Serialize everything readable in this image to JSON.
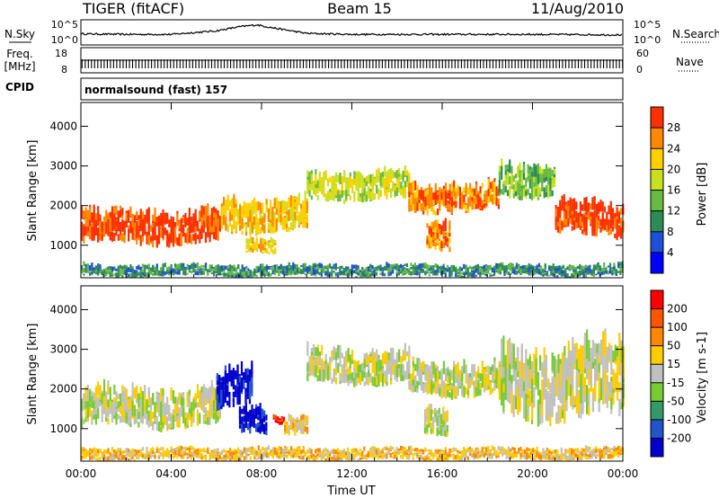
{
  "chart_data": [
    {
      "type": "header",
      "title": "TIGER (fitACF)",
      "subtitle": "Beam 15",
      "date": "11/Aug/2010"
    },
    {
      "type": "line",
      "name": "noise-panel",
      "left_label": "N.Sky",
      "right_label": "N.Search",
      "left_ticks": [
        "10^5",
        "10^0"
      ],
      "right_ticks": [
        "10^5",
        "10^0"
      ],
      "ylim": [
        0,
        5
      ],
      "series": [
        {
          "name": "N.Sky",
          "x": [
            0,
            2,
            4,
            6,
            7,
            7.8,
            8.5,
            10,
            12,
            16,
            20,
            24
          ],
          "values": [
            2.2,
            2.1,
            2.1,
            2.8,
            3.6,
            4.0,
            3.4,
            2.3,
            2.1,
            2.1,
            2.1,
            2.0
          ]
        }
      ]
    },
    {
      "type": "line",
      "name": "frequency-panel",
      "left_label": "Freq.",
      "left_unit": "[MHz]",
      "right_label": "Nave",
      "left_ticks": [
        "18",
        "8"
      ],
      "right_ticks": [
        "60",
        "0"
      ],
      "ylim": [
        8,
        18
      ]
    },
    {
      "type": "table",
      "name": "cpid-panel",
      "left_label": "CPID",
      "value": "normalsound (fast) 157"
    },
    {
      "type": "heatmap",
      "name": "power-panel",
      "ylabel": "Slant Range [km]",
      "yticks": [
        "1000",
        "2000",
        "3000",
        "4000"
      ],
      "ylim": [
        180,
        4600
      ],
      "xlim": [
        0,
        24
      ],
      "colorbar": {
        "label": "Power [dB]",
        "ticks": [
          "4",
          "8",
          "12",
          "16",
          "20",
          "24",
          "28"
        ],
        "colors": [
          "#0000ff",
          "#1f4fd8",
          "#2e8b57",
          "#66bb44",
          "#c8e020",
          "#ffd000",
          "#ff8800",
          "#ff3000"
        ]
      },
      "bands": [
        {
          "t0": 0.0,
          "t1": 6.2,
          "r0": 1000,
          "r1": 1700,
          "level": 7
        },
        {
          "t0": 6.2,
          "t1": 10.0,
          "r0": 1300,
          "r1": 2000,
          "level": 5
        },
        {
          "t0": 10.0,
          "t1": 14.5,
          "r0": 2100,
          "r1": 2700,
          "level": 4
        },
        {
          "t0": 14.5,
          "t1": 18.5,
          "r0": 1800,
          "r1": 2400,
          "level": 6
        },
        {
          "t0": 18.5,
          "t1": 21.0,
          "r0": 2200,
          "r1": 2900,
          "level": 3
        },
        {
          "t0": 21.0,
          "t1": 24.0,
          "r0": 1200,
          "r1": 1900,
          "level": 7
        },
        {
          "t0": 7.3,
          "t1": 8.6,
          "r0": 800,
          "r1": 1100,
          "level": 5
        },
        {
          "t0": 15.3,
          "t1": 16.3,
          "r0": 800,
          "r1": 1400,
          "level": 6
        },
        {
          "t0": 0.0,
          "t1": 24.0,
          "r0": 200,
          "r1": 450,
          "level": 2
        }
      ]
    },
    {
      "type": "heatmap",
      "name": "velocity-panel",
      "ylabel": "Slant Range [km]",
      "yticks": [
        "1000",
        "2000",
        "3000",
        "4000"
      ],
      "ylim": [
        180,
        4600
      ],
      "xlim": [
        0,
        24
      ],
      "xticks": [
        "00:00",
        "04:00",
        "08:00",
        "12:00",
        "16:00",
        "20:00",
        "00:00"
      ],
      "xlabel": "Time UT",
      "colorbar": {
        "label": "Velocity [m s-1]",
        "ticks": [
          "200",
          "100",
          "50",
          "15",
          "-15",
          "-50",
          "-100",
          "-200"
        ],
        "colors": [
          "#0000cc",
          "#2255cc",
          "#339966",
          "#77cc33",
          "#c0c0c0",
          "#ffcc00",
          "#ff8800",
          "#ff5500",
          "#ff0000"
        ]
      },
      "bands": [
        {
          "t0": 0.0,
          "t1": 6.2,
          "r0": 1000,
          "r1": 1800,
          "level": 4
        },
        {
          "t0": 10.0,
          "t1": 14.5,
          "r0": 2100,
          "r1": 2800,
          "level": 4
        },
        {
          "t0": 14.5,
          "t1": 18.5,
          "r0": 1800,
          "r1": 2500,
          "level": 4
        },
        {
          "t0": 18.5,
          "t1": 24.0,
          "r0": 1200,
          "r1": 2700,
          "level": 4
        },
        {
          "t0": 6.0,
          "t1": 7.6,
          "r0": 1500,
          "r1": 2300,
          "level": 0
        },
        {
          "t0": 7.0,
          "t1": 8.2,
          "r0": 800,
          "r1": 1400,
          "level": 0
        },
        {
          "t0": 8.5,
          "t1": 9.0,
          "r0": 1100,
          "r1": 1300,
          "level": 8
        },
        {
          "t0": 9.0,
          "t1": 10.0,
          "r0": 800,
          "r1": 1200,
          "level": 5
        },
        {
          "t0": 15.2,
          "t1": 16.2,
          "r0": 800,
          "r1": 1400,
          "level": 4
        },
        {
          "t0": 0.0,
          "t1": 24.0,
          "r0": 200,
          "r1": 450,
          "level": 5
        }
      ]
    }
  ]
}
